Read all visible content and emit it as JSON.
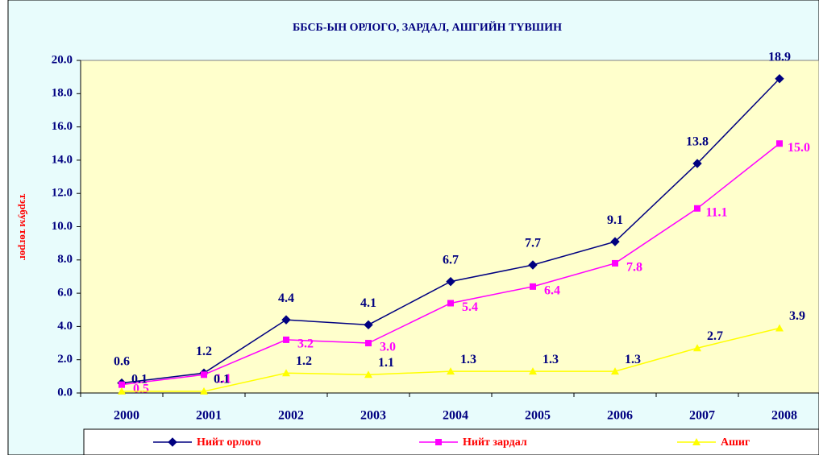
{
  "chart_data": {
    "type": "line",
    "title": "ББСБ-ЫН ОРЛОГО, ЗАРДАЛ, АШГИЙН ТҮВШИН",
    "y_label": "тэрбум төгрөг",
    "categories": [
      "2000",
      "2001",
      "2002",
      "2003",
      "2004",
      "2005",
      "2006",
      "2007",
      "2008"
    ],
    "series": [
      {
        "name": "Нийт орлого",
        "color": "#000080",
        "marker": "diamond",
        "values": [
          0.6,
          1.2,
          4.4,
          4.1,
          6.7,
          7.7,
          9.1,
          13.8,
          18.9
        ],
        "value_labels": [
          "0.6",
          "1.2",
          "4.4",
          "4.1",
          "6.7",
          "7.7",
          "9.1",
          "13.8",
          "18.9"
        ]
      },
      {
        "name": "Нийт зардал",
        "color": "#ff00ff",
        "marker": "square",
        "values": [
          0.5,
          1.1,
          3.2,
          3.0,
          5.4,
          6.4,
          7.8,
          11.1,
          15.0
        ],
        "value_labels": [
          "0.5",
          "1.1",
          "3.2",
          "3.0",
          "5.4",
          "6.4",
          "7.8",
          "11.1",
          "15.0"
        ]
      },
      {
        "name": "Ашиг",
        "color": "#ffff00",
        "marker": "triangle",
        "values": [
          0.1,
          0.1,
          1.2,
          1.1,
          1.3,
          1.3,
          1.3,
          2.7,
          3.9
        ],
        "value_labels": [
          "0.1",
          "0.1",
          "1.2",
          "1.1",
          "1.3",
          "1.3",
          "1.3",
          "2.7",
          "3.9"
        ]
      }
    ],
    "ylim": [
      0,
      20
    ],
    "yticks": [
      {
        "value": 0,
        "label": "0.0"
      },
      {
        "value": 2,
        "label": "2.0"
      },
      {
        "value": 4,
        "label": "4.0"
      },
      {
        "value": 6,
        "label": "6.0"
      },
      {
        "value": 8,
        "label": "8.0"
      },
      {
        "value": 10,
        "label": "10.0"
      },
      {
        "value": 12,
        "label": "12.0"
      },
      {
        "value": 14,
        "label": "14.0"
      },
      {
        "value": 16,
        "label": "16.0"
      },
      {
        "value": 18,
        "label": "18.0"
      },
      {
        "value": 20,
        "label": "20.0"
      }
    ],
    "legend": "bottom"
  }
}
